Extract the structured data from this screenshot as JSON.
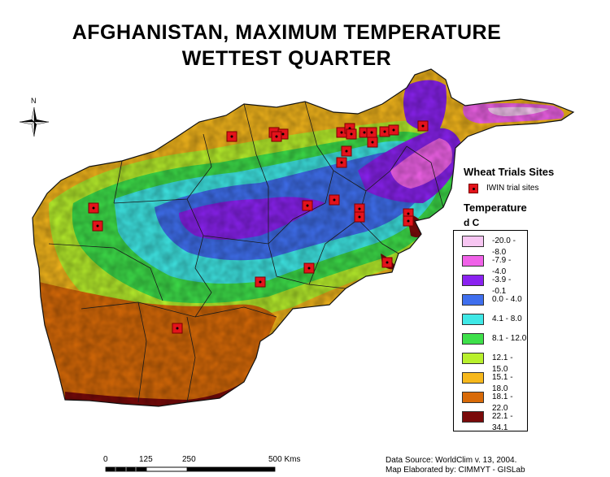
{
  "title_line1": "AFGHANISTAN, MAXIMUM TEMPERATURE",
  "title_line2": "WETTEST  QUARTER",
  "north_label": "N",
  "legend": {
    "sites_heading": "Wheat Trials Sites",
    "trial_label": "IWIN trial sites",
    "temp_heading": "Temperature",
    "unit": "d C",
    "classes": [
      {
        "range": "-20.0 - -8.0",
        "color": "#f7c6f2"
      },
      {
        "range": "-7.9 - -4.0",
        "color": "#f062e8"
      },
      {
        "range": "-3.9 - -0.1",
        "color": "#8a22f0"
      },
      {
        "range": "0.0 - 4.0",
        "color": "#3f6fee"
      },
      {
        "range": "4.1 - 8.0",
        "color": "#3fe8e6"
      },
      {
        "range": "8.1 - 12.0",
        "color": "#3ee04a"
      },
      {
        "range": "12.1 - 15.0",
        "color": "#b8f02c"
      },
      {
        "range": "15.1 - 18.0",
        "color": "#f6b81c"
      },
      {
        "range": "18.1 - 22.0",
        "color": "#d86a08"
      },
      {
        "range": "22.1 - 34.1",
        "color": "#7a0a0a"
      }
    ]
  },
  "scale": {
    "labels": [
      "0",
      "125",
      "250",
      "500 Kms"
    ]
  },
  "footer": {
    "line1": "Data Source: WorldClim v. 13,  2004.",
    "line2": "Map Elaborated by: CIMMYT - GISLab"
  },
  "trial_sites_count": 27
}
